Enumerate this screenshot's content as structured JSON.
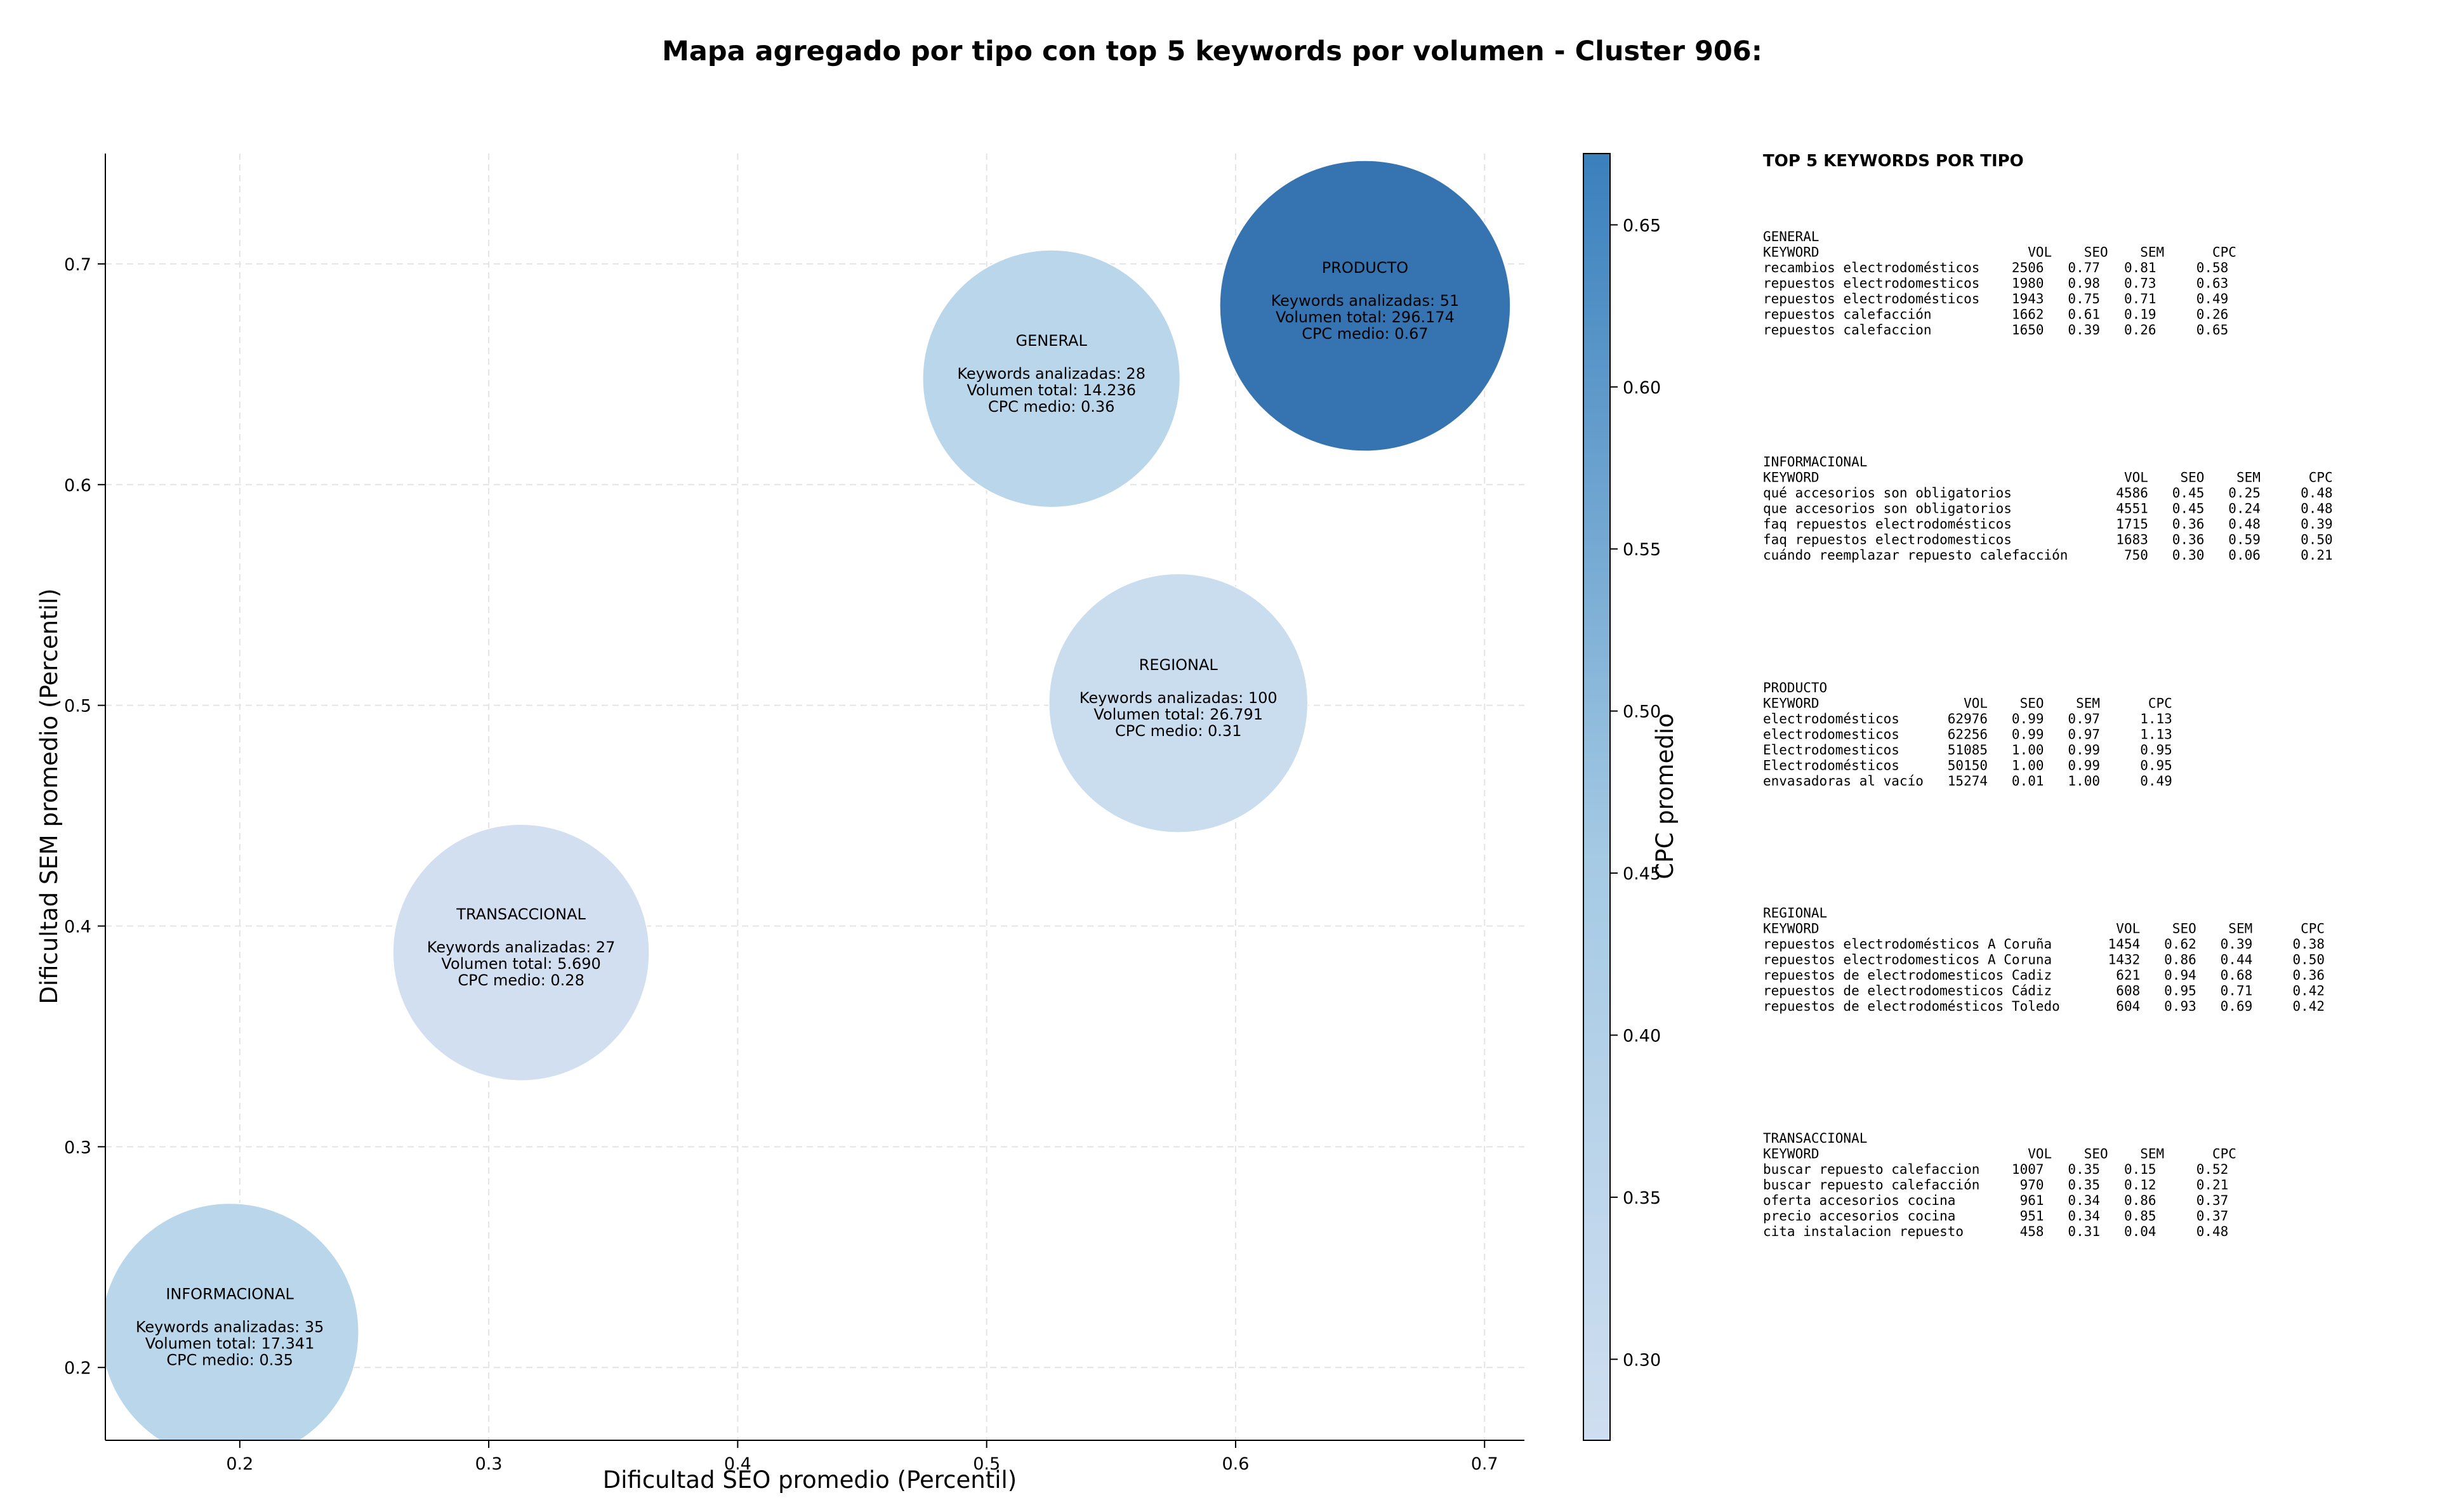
{
  "title": "Mapa agregado por tipo con top 5 keywords por volumen - Cluster 906:",
  "chart_data": {
    "type": "scatter",
    "title": "Mapa agregado por tipo con top 5 keywords por volumen - Cluster 906:",
    "xlabel": "Dificultad SEO promedio (Percentil)",
    "ylabel": "Dificultad SEM promedio (Percentil)",
    "xlim": [
      0.146,
      0.716
    ],
    "ylim": [
      0.167,
      0.75
    ],
    "xticks": [
      0.2,
      0.3,
      0.4,
      0.5,
      0.6,
      0.7
    ],
    "xtick_labels": [
      "0.2",
      "0.3",
      "0.4",
      "0.5",
      "0.6",
      "0.7"
    ],
    "yticks": [
      0.2,
      0.3,
      0.4,
      0.5,
      0.6,
      0.7
    ],
    "ytick_labels": [
      "0.2",
      "0.3",
      "0.4",
      "0.5",
      "0.6",
      "0.7"
    ],
    "grid": true,
    "colorbar": {
      "label": "CPC promedio",
      "range": [
        0.275,
        0.672
      ],
      "ticks": [
        0.3,
        0.35,
        0.4,
        0.45,
        0.5,
        0.55,
        0.6,
        0.65
      ],
      "tick_labels": [
        "0.30",
        "0.35",
        "0.40",
        "0.45",
        "0.50",
        "0.55",
        "0.60",
        "0.65"
      ],
      "colors": [
        "#cfdef0",
        "#3a80bd"
      ]
    },
    "points": [
      {
        "name": "INFORMACIONAL",
        "x": 0.196,
        "y": 0.216,
        "keywords": 35,
        "volume": 17341,
        "cpc": 0.35,
        "lines": [
          "Keywords analizadas: 35",
          "Volumen total: 17.341",
          "CPC medio: 0.35"
        ],
        "color": "#b8d5ea"
      },
      {
        "name": "TRANSACCIONAL",
        "x": 0.313,
        "y": 0.388,
        "keywords": 27,
        "volume": 5690,
        "cpc": 0.28,
        "lines": [
          "Keywords analizadas: 27",
          "Volumen total: 5.690",
          "CPC medio: 0.28"
        ],
        "color": "#cfdef0"
      },
      {
        "name": "GENERAL",
        "x": 0.526,
        "y": 0.648,
        "keywords": 28,
        "volume": 14236,
        "cpc": 0.36,
        "lines": [
          "Keywords analizadas: 28",
          "Volumen total: 14.236",
          "CPC medio: 0.36"
        ],
        "color": "#b8d5ea"
      },
      {
        "name": "REGIONAL",
        "x": 0.577,
        "y": 0.501,
        "keywords": 100,
        "volume": 26791,
        "cpc": 0.31,
        "lines": [
          "Keywords analizadas: 100",
          "Volumen total: 26.791",
          "CPC medio: 0.31"
        ],
        "color": "#c8dcee"
      },
      {
        "name": "PRODUCTO",
        "x": 0.652,
        "y": 0.681,
        "keywords": 51,
        "volume": 296174,
        "cpc": 0.67,
        "lines": [
          "Keywords analizadas: 51",
          "Volumen total: 296.174",
          "CPC medio: 0.67"
        ],
        "color": "#2e6fae"
      }
    ]
  },
  "panel": {
    "heading": "TOP 5 KEYWORDS POR TIPO",
    "sections": [
      {
        "type": "GENERAL",
        "lines": [
          "KEYWORD                          VOL    SEO    SEM      CPC",
          "recambios electrodomésticos    2506   0.77   0.81     0.58",
          "repuestos electrodomesticos    1980   0.98   0.73     0.63",
          "repuestos electrodomésticos    1943   0.75   0.71     0.49",
          "repuestos calefacción          1662   0.61   0.19     0.26",
          "repuestos calefaccion          1650   0.39   0.26     0.65"
        ]
      },
      {
        "type": "INFORMACIONAL",
        "lines": [
          "KEYWORD                                      VOL    SEO    SEM      CPC",
          "qué accesorios son obligatorios             4586   0.45   0.25     0.48",
          "que accesorios son obligatorios             4551   0.45   0.24     0.48",
          "faq repuestos electrodomésticos             1715   0.36   0.48     0.39",
          "faq repuestos electrodomesticos             1683   0.36   0.59     0.50",
          "cuándo reemplazar repuesto calefacción       750   0.30   0.06     0.21"
        ]
      },
      {
        "type": "PRODUCTO",
        "lines": [
          "KEYWORD                  VOL    SEO    SEM      CPC",
          "electrodomésticos      62976   0.99   0.97     1.13",
          "electrodomesticos      62256   0.99   0.97     1.13",
          "Electrodomesticos      51085   1.00   0.99     0.95",
          "Electrodomésticos      50150   1.00   0.99     0.95",
          "envasadoras al vacío   15274   0.01   1.00     0.49"
        ]
      },
      {
        "type": "REGIONAL",
        "lines": [
          "KEYWORD                                     VOL    SEO    SEM      CPC",
          "repuestos electrodomésticos A Coruña       1454   0.62   0.39     0.38",
          "repuestos electrodomesticos A Coruna       1432   0.86   0.44     0.50",
          "repuestos de electrodomesticos Cadiz        621   0.94   0.68     0.36",
          "repuestos de electrodomesticos Cádiz        608   0.95   0.71     0.42",
          "repuestos de electrodomésticos Toledo       604   0.93   0.69     0.42"
        ]
      },
      {
        "type": "TRANSACCIONAL",
        "lines": [
          "KEYWORD                          VOL    SEO    SEM      CPC",
          "buscar repuesto calefaccion    1007   0.35   0.15     0.52",
          "buscar repuesto calefacción     970   0.35   0.12     0.21",
          "oferta accesorios cocina        961   0.34   0.86     0.37",
          "precio accesorios cocina        951   0.34   0.85     0.37",
          "cita instalacion repuesto       458   0.31   0.04     0.48"
        ]
      }
    ]
  }
}
